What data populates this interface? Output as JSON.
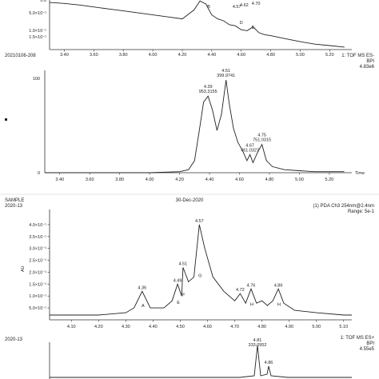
{
  "chart_data": [
    {
      "type": "line",
      "x_ticks": [
        "3.40",
        "3.60",
        "3.80",
        "4.00",
        "4.20",
        "4.40",
        "4.60",
        "4.80",
        "5.00",
        "5.20"
      ],
      "xlim": [
        3.3,
        5.35
      ],
      "y_ticks": [
        "0.0",
        "5.0×10⁻¹",
        "1.0×10⁻¹",
        "1.5×10⁻¹"
      ],
      "peak_labels": [
        {
          "x": 4.38,
          "text": "B"
        },
        {
          "x": 4.57,
          "text": "4.57"
        },
        {
          "x": 4.62,
          "text": "4.62"
        },
        {
          "x": 4.7,
          "text": "4.70"
        },
        {
          "x": 4.6,
          "text": "D"
        },
        {
          "x": 4.68,
          "text": "E"
        }
      ],
      "x": [
        3.3,
        3.4,
        3.5,
        3.6,
        3.7,
        3.8,
        3.9,
        4.0,
        4.1,
        4.2,
        4.28,
        4.32,
        4.36,
        4.4,
        4.44,
        4.48,
        4.52,
        4.56,
        4.6,
        4.64,
        4.68,
        4.72,
        4.76,
        4.8,
        4.9,
        5.0,
        5.1,
        5.2,
        5.3
      ],
      "y": [
        0.95,
        0.93,
        0.9,
        0.86,
        0.82,
        0.78,
        0.74,
        0.7,
        0.66,
        0.62,
        0.8,
        0.98,
        0.92,
        0.7,
        0.62,
        0.58,
        0.5,
        0.48,
        0.4,
        0.38,
        0.46,
        0.34,
        0.3,
        0.28,
        0.22,
        0.16,
        0.11,
        0.08,
        0.05
      ]
    },
    {
      "type": "line",
      "header_left": "20210106-208",
      "header_right": [
        "1: TOF MS ES-",
        "BPI",
        "4.83e6"
      ],
      "y_label": "%",
      "y_ticks": [
        "100",
        "0"
      ],
      "x_ticks": [
        "3.40",
        "3.60",
        "3.80",
        "4.00",
        "4.20",
        "4.40",
        "4.60",
        "4.80",
        "5.00",
        "5.20"
      ],
      "x_label": "Time",
      "xlim": [
        3.3,
        5.35
      ],
      "ylim": [
        0,
        100
      ],
      "peak_labels": [
        {
          "x": 4.39,
          "text": "4.39",
          "mz": "953.3155"
        },
        {
          "x": 4.51,
          "text": "4.51",
          "mz": "399.9741"
        },
        {
          "x": 4.67,
          "text": "4.67",
          "mz": "461.0327"
        },
        {
          "x": 4.75,
          "text": "4.75",
          "mz": "751.0315"
        }
      ],
      "x": [
        3.3,
        3.6,
        4.0,
        4.2,
        4.26,
        4.3,
        4.33,
        4.36,
        4.39,
        4.42,
        4.45,
        4.48,
        4.51,
        4.53,
        4.56,
        4.59,
        4.62,
        4.65,
        4.67,
        4.69,
        4.72,
        4.75,
        4.78,
        4.82,
        4.9,
        5.0,
        5.1,
        5.2,
        5.3
      ],
      "y": [
        0,
        0,
        0,
        1,
        3,
        12,
        40,
        70,
        76,
        62,
        42,
        58,
        92,
        70,
        44,
        30,
        22,
        12,
        18,
        10,
        20,
        28,
        12,
        6,
        3,
        2,
        1,
        1,
        1
      ]
    },
    {
      "type": "line",
      "header_left": "SAMPLE",
      "header_sub": "2020-13",
      "header_center": "30-Dec-2020",
      "header_right": [
        "(1) PDA Ch3 254nm@2.4nm",
        "Range: 5e-1"
      ],
      "y_label": "AU",
      "y_ticks": [
        "5.0×10⁻¹",
        "1.0×10⁻¹",
        "1.5×10⁻¹",
        "2.0×10⁻¹",
        "2.5×10⁻¹",
        "3.0×10⁻¹",
        "3.5×10⁻¹",
        "4.0×10⁻¹"
      ],
      "x_ticks": [
        "4.10",
        "4.20",
        "4.30",
        "4.40",
        "4.50",
        "4.60",
        "4.70",
        "4.80",
        "4.90",
        "5.00",
        "5.10"
      ],
      "xlim": [
        4.02,
        5.13
      ],
      "ylim": [
        0,
        0.45
      ],
      "peak_labels": [
        {
          "x": 4.36,
          "text": "4.36",
          "letter": "A"
        },
        {
          "x": 4.49,
          "text": "4.49",
          "letter": "E"
        },
        {
          "x": 4.51,
          "text": "4.51",
          "letter": "F"
        },
        {
          "x": 4.57,
          "text": "4.57",
          "letter": "G"
        },
        {
          "x": 4.72,
          "text": "4.72",
          "letter": ""
        },
        {
          "x": 4.76,
          "text": "4.76",
          "letter": "H"
        },
        {
          "x": 4.86,
          "text": "4.86",
          "letter": "H"
        }
      ],
      "x": [
        4.02,
        4.1,
        4.2,
        4.3,
        4.33,
        4.36,
        4.39,
        4.44,
        4.47,
        4.49,
        4.505,
        4.51,
        4.53,
        4.55,
        4.57,
        4.59,
        4.62,
        4.66,
        4.7,
        4.72,
        4.74,
        4.76,
        4.78,
        4.8,
        4.82,
        4.84,
        4.86,
        4.88,
        4.92,
        5.0,
        5.1,
        5.13
      ],
      "y": [
        0.02,
        0.02,
        0.02,
        0.03,
        0.05,
        0.12,
        0.05,
        0.05,
        0.08,
        0.15,
        0.1,
        0.22,
        0.16,
        0.18,
        0.4,
        0.3,
        0.18,
        0.12,
        0.08,
        0.11,
        0.07,
        0.13,
        0.07,
        0.08,
        0.06,
        0.08,
        0.13,
        0.07,
        0.04,
        0.03,
        0.02,
        0.02
      ]
    },
    {
      "type": "line",
      "header_sub": "2020-13",
      "header_right": [
        "1: TOF MS ES+",
        "BPI",
        "4.55e5"
      ],
      "peak_labels": [
        {
          "x": 4.81,
          "text": "4.81",
          "mz": "333.0952"
        },
        {
          "x": 4.86,
          "text": "4.86",
          "mz": ""
        }
      ]
    }
  ]
}
